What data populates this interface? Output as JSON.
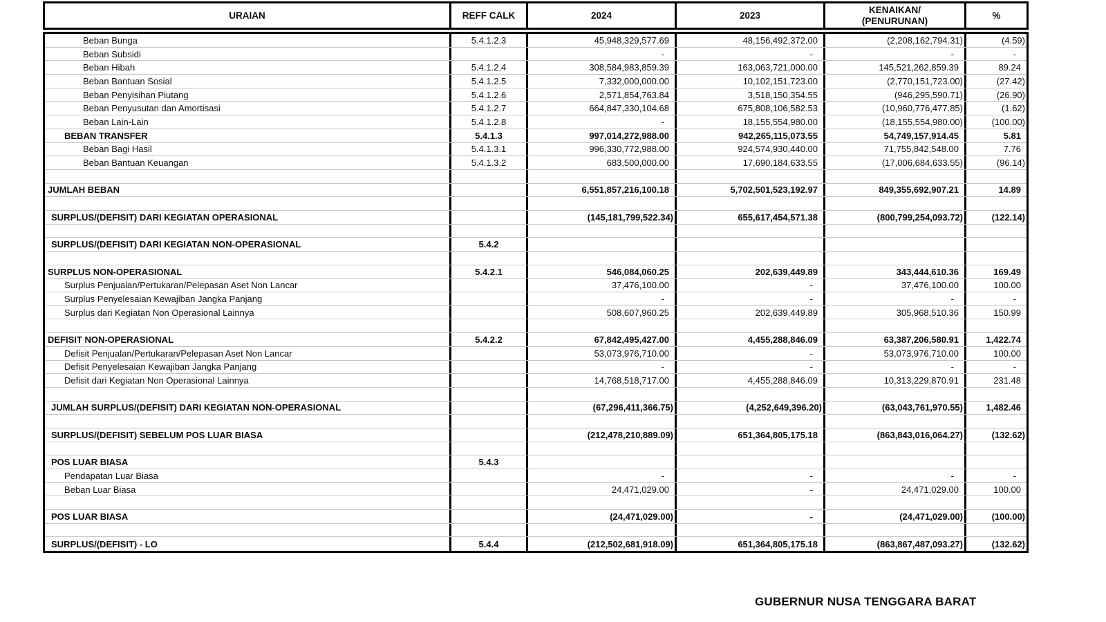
{
  "table": {
    "headers": [
      "URAIAN",
      "REFF CALK",
      "2024",
      "2023",
      "KENAIKAN/\n(PENURUNAN)",
      "%"
    ],
    "rows": [
      {
        "label": "Beban Bunga",
        "indent": 3,
        "reff": "5.4.1.2.3",
        "y2024": "45,948,329,577.69",
        "y2023": "48,156,492,372.00",
        "change": "(2,208,162,794.31)",
        "pct": "(4.59)",
        "bold": false
      },
      {
        "label": "Beban Subsidi",
        "indent": 3,
        "reff": "",
        "y2024": "-",
        "y2023": "-",
        "change": "-",
        "pct": "-",
        "bold": false
      },
      {
        "label": "Beban Hibah",
        "indent": 3,
        "reff": "5.4.1.2.4",
        "y2024": "308,584,983,859.39",
        "y2023": "163,063,721,000.00",
        "change": "145,521,262,859.39",
        "pct": "89.24",
        "bold": false
      },
      {
        "label": "Beban Bantuan Sosial",
        "indent": 3,
        "reff": "5.4.1.2.5",
        "y2024": "7,332,000,000.00",
        "y2023": "10,102,151,723.00",
        "change": "(2,770,151,723.00)",
        "pct": "(27.42)",
        "bold": false
      },
      {
        "label": "Beban Penyisihan Piutang",
        "indent": 3,
        "reff": "5.4.1.2.6",
        "y2024": "2,571,854,763.84",
        "y2023": "3,518,150,354.55",
        "change": "(946,295,590.71)",
        "pct": "(26.90)",
        "bold": false
      },
      {
        "label": "Beban Penyusutan dan Amortisasi",
        "indent": 3,
        "reff": "5.4.1.2.7",
        "y2024": "664,847,330,104.68",
        "y2023": "675,808,106,582.53",
        "change": "(10,960,776,477.85)",
        "pct": "(1.62)",
        "bold": false
      },
      {
        "label": "Beban Lain-Lain",
        "indent": 3,
        "reff": "5.4.1.2.8",
        "y2024": "-",
        "y2023": "18,155,554,980.00",
        "change": "(18,155,554,980.00)",
        "pct": "(100.00)",
        "bold": false
      },
      {
        "label": "BEBAN TRANSFER",
        "indent": 2,
        "reff": "5.4.1.3",
        "y2024": "997,014,272,988.00",
        "y2023": "942,265,115,073.55",
        "change": "54,749,157,914.45",
        "pct": "5.81",
        "bold": true
      },
      {
        "label": "Beban Bagi Hasil",
        "indent": 3,
        "reff": "5.4.1.3.1",
        "y2024": "996,330,772,988.00",
        "y2023": "924,574,930,440.00",
        "change": "71,755,842,548.00",
        "pct": "7.76",
        "bold": false
      },
      {
        "label": "Beban Bantuan Keuangan",
        "indent": 3,
        "reff": "5.4.1.3.2",
        "y2024": "683,500,000.00",
        "y2023": "17,690,184,633.55",
        "change": "(17,006,684,633.55)",
        "pct": "(96.14)",
        "bold": false
      },
      {
        "label": "",
        "indent": 0,
        "reff": "",
        "y2024": "",
        "y2023": "",
        "change": "",
        "pct": "",
        "bold": false
      },
      {
        "label": "JUMLAH BEBAN",
        "indent": 0,
        "reff": "",
        "y2024": "6,551,857,216,100.18",
        "y2023": "5,702,501,523,192.97",
        "change": "849,355,692,907.21",
        "pct": "14.89",
        "bold": true
      },
      {
        "label": "",
        "indent": 0,
        "reff": "",
        "y2024": "",
        "y2023": "",
        "change": "",
        "pct": "",
        "bold": false
      },
      {
        "label": "SURPLUS/(DEFISIT) DARI KEGIATAN OPERASIONAL",
        "indent": 1,
        "reff": "",
        "y2024": "(145,181,799,522.34)",
        "y2023": "655,617,454,571.38",
        "change": "(800,799,254,093.72)",
        "pct": "(122.14)",
        "bold": true
      },
      {
        "label": "",
        "indent": 0,
        "reff": "",
        "y2024": "",
        "y2023": "",
        "change": "",
        "pct": "",
        "bold": false
      },
      {
        "label": "SURPLUS/(DEFISIT) DARI KEGIATAN NON-OPERASIONAL",
        "indent": 1,
        "reff": "5.4.2",
        "y2024": "",
        "y2023": "",
        "change": "",
        "pct": "",
        "bold": true
      },
      {
        "label": "",
        "indent": 0,
        "reff": "",
        "y2024": "",
        "y2023": "",
        "change": "",
        "pct": "",
        "bold": false
      },
      {
        "label": "SURPLUS NON-OPERASIONAL",
        "indent": 0,
        "reff": "5.4.2.1",
        "y2024": "546,084,060.25",
        "y2023": "202,639,449.89",
        "change": "343,444,610.36",
        "pct": "169.49",
        "bold": true
      },
      {
        "label": "Surplus Penjualan/Pertukaran/Pelepasan Aset Non Lancar",
        "indent": 2,
        "reff": "",
        "y2024": "37,476,100.00",
        "y2023": "-",
        "change": "37,476,100.00",
        "pct": "100.00",
        "bold": false
      },
      {
        "label": "Surplus Penyelesaian Kewajiban Jangka Panjang",
        "indent": 2,
        "reff": "",
        "y2024": "-",
        "y2023": "-",
        "change": "-",
        "pct": "-",
        "bold": false
      },
      {
        "label": "Surplus dari Kegiatan Non Operasional Lainnya",
        "indent": 2,
        "reff": "",
        "y2024": "508,607,960.25",
        "y2023": "202,639,449.89",
        "change": "305,968,510.36",
        "pct": "150.99",
        "bold": false
      },
      {
        "label": "",
        "indent": 0,
        "reff": "",
        "y2024": "",
        "y2023": "",
        "change": "",
        "pct": "",
        "bold": false
      },
      {
        "label": "DEFISIT NON-OPERASIONAL",
        "indent": 0,
        "reff": "5.4.2.2",
        "y2024": "67,842,495,427.00",
        "y2023": "4,455,288,846.09",
        "change": "63,387,206,580.91",
        "pct": "1,422.74",
        "bold": true
      },
      {
        "label": "Defisit Penjualan/Pertukaran/Pelepasan Aset Non Lancar",
        "indent": 2,
        "reff": "",
        "y2024": "53,073,976,710.00",
        "y2023": "-",
        "change": "53,073,976,710.00",
        "pct": "100.00",
        "bold": false
      },
      {
        "label": "Defisit Penyelesaian Kewajiban Jangka Panjang",
        "indent": 2,
        "reff": "",
        "y2024": "-",
        "y2023": "-",
        "change": "-",
        "pct": "-",
        "bold": false
      },
      {
        "label": "Defisit dari Kegiatan Non Operasional Lainnya",
        "indent": 2,
        "reff": "",
        "y2024": "14,768,518,717.00",
        "y2023": "4,455,288,846.09",
        "change": "10,313,229,870.91",
        "pct": "231.48",
        "bold": false
      },
      {
        "label": "",
        "indent": 0,
        "reff": "",
        "y2024": "",
        "y2023": "",
        "change": "",
        "pct": "",
        "bold": false
      },
      {
        "label": "JUMLAH SURPLUS/(DEFISIT) DARI KEGIATAN NON-OPERASIONAL",
        "indent": 1,
        "reff": "",
        "y2024": "(67,296,411,366.75)",
        "y2023": "(4,252,649,396.20)",
        "change": "(63,043,761,970.55)",
        "pct": "1,482.46",
        "bold": true
      },
      {
        "label": "",
        "indent": 0,
        "reff": "",
        "y2024": "",
        "y2023": "",
        "change": "",
        "pct": "",
        "bold": false
      },
      {
        "label": "SURPLUS/(DEFISIT) SEBELUM POS LUAR BIASA",
        "indent": 1,
        "reff": "",
        "y2024": "(212,478,210,889.09)",
        "y2023": "651,364,805,175.18",
        "change": "(863,843,016,064.27)",
        "pct": "(132.62)",
        "bold": true
      },
      {
        "label": "",
        "indent": 0,
        "reff": "",
        "y2024": "",
        "y2023": "",
        "change": "",
        "pct": "",
        "bold": false
      },
      {
        "label": "POS LUAR BIASA",
        "indent": 1,
        "reff": "5.4.3",
        "y2024": "",
        "y2023": "",
        "change": "",
        "pct": "",
        "bold": true
      },
      {
        "label": "Pendapatan Luar Biasa",
        "indent": 2,
        "reff": "",
        "y2024": "-",
        "y2023": "-",
        "change": "-",
        "pct": "-",
        "bold": false
      },
      {
        "label": "Beban Luar Biasa",
        "indent": 2,
        "reff": "",
        "y2024": "24,471,029.00",
        "y2023": "-",
        "change": "24,471,029.00",
        "pct": "100.00",
        "bold": false
      },
      {
        "label": "",
        "indent": 0,
        "reff": "",
        "y2024": "",
        "y2023": "",
        "change": "",
        "pct": "",
        "bold": false
      },
      {
        "label": "POS LUAR BIASA",
        "indent": 1,
        "reff": "",
        "y2024": "(24,471,029.00)",
        "y2023": "-",
        "change": "(24,471,029.00)",
        "pct": "(100.00)",
        "bold": true
      },
      {
        "label": "",
        "indent": 0,
        "reff": "",
        "y2024": "",
        "y2023": "",
        "change": "",
        "pct": "",
        "bold": false
      },
      {
        "label": "SURPLUS/(DEFISIT) - LO",
        "indent": 1,
        "reff": "5.4.4",
        "y2024": "(212,502,681,918.09)",
        "y2023": "651,364,805,175.18",
        "change": "(863,867,487,093.27)",
        "pct": "(132.62)",
        "bold": true
      }
    ]
  },
  "footer": {
    "signature_title": "GUBERNUR NUSA TENGGARA BARAT"
  }
}
